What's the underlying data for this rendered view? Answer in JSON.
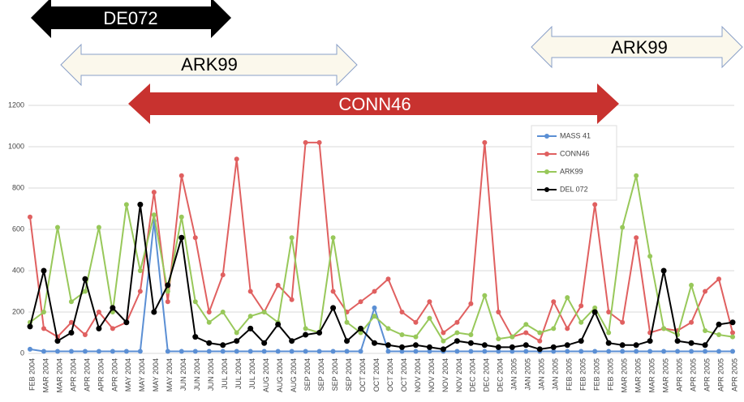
{
  "chart_data": {
    "type": "line",
    "annotations": [
      "DE072",
      "ARK99",
      "ARK99",
      "CONN46"
    ],
    "categories": [
      "FEB 2004",
      "MAR 2004",
      "MAR 2004",
      "APR 2004",
      "APR 2004",
      "APR 2004",
      "APR 2004",
      "MAY 2004",
      "MAY 2004",
      "MAY 2004",
      "MAY 2004",
      "JUN 2004",
      "JUN 2004",
      "JUN 2004",
      "JUL 2004",
      "JUL 2004",
      "JUL 2004",
      "AUG 2004",
      "AUG 2004",
      "AUG 2004",
      "SEP 2004",
      "SEP 2004",
      "SEP 2004",
      "SEP 2004",
      "OCT 2004",
      "OCT 2004",
      "OCT 2004",
      "OCT 2004",
      "NOV 2004",
      "NOV 2004",
      "NOV 2004",
      "NOV 2004",
      "DEC 2004",
      "DEC 2004",
      "DEC 2004",
      "JAN 2005",
      "JAN 2005",
      "JAN 2005",
      "JAN 2005",
      "FEB 2005",
      "FEB 2005",
      "FEB 2005",
      "FEB 2005",
      "MAR 2005",
      "MAR 2005",
      "MAR 2005",
      "MAR 2005",
      "APR 2005",
      "APR 2005",
      "APR 2005",
      "APR 2005",
      "APR 2005"
    ],
    "series": [
      {
        "name": "MASS 41",
        "color": "#5b8fd4",
        "values": [
          20,
          10,
          10,
          10,
          10,
          10,
          10,
          10,
          10,
          640,
          10,
          10,
          10,
          10,
          10,
          10,
          10,
          10,
          10,
          10,
          10,
          10,
          10,
          10,
          10,
          220,
          10,
          10,
          10,
          10,
          10,
          10,
          10,
          10,
          10,
          10,
          10,
          10,
          10,
          10,
          10,
          10,
          10,
          10,
          10,
          10,
          10,
          10,
          10,
          10,
          10,
          10
        ]
      },
      {
        "name": "CONN46",
        "color": "#e06060",
        "values": [
          660,
          120,
          80,
          150,
          90,
          200,
          120,
          150,
          300,
          780,
          250,
          860,
          560,
          200,
          380,
          940,
          300,
          200,
          330,
          260,
          1020,
          1020,
          300,
          200,
          250,
          300,
          360,
          200,
          150,
          250,
          100,
          150,
          240,
          1020,
          200,
          80,
          100,
          60,
          250,
          120,
          230,
          720,
          200,
          150,
          560,
          100,
          120,
          110,
          150,
          300,
          360,
          100
        ]
      },
      {
        "name": "ARK99",
        "color": "#98c85a",
        "values": [
          150,
          200,
          610,
          250,
          300,
          610,
          200,
          720,
          400,
          670,
          300,
          660,
          250,
          150,
          200,
          100,
          180,
          200,
          150,
          560,
          120,
          100,
          560,
          150,
          100,
          180,
          120,
          90,
          80,
          170,
          60,
          100,
          90,
          280,
          70,
          80,
          140,
          100,
          120,
          270,
          150,
          220,
          100,
          610,
          860,
          470,
          120,
          90,
          330,
          110,
          90,
          80
        ]
      },
      {
        "name": "DEL 072",
        "color": "#000000",
        "values": [
          130,
          400,
          60,
          100,
          360,
          120,
          220,
          150,
          720,
          200,
          330,
          560,
          80,
          50,
          40,
          60,
          120,
          50,
          140,
          60,
          90,
          100,
          220,
          60,
          120,
          50,
          40,
          30,
          40,
          30,
          20,
          60,
          50,
          40,
          30,
          30,
          40,
          20,
          30,
          40,
          60,
          200,
          50,
          40,
          40,
          60,
          400,
          60,
          50,
          40,
          140,
          150
        ]
      }
    ],
    "ylim": [
      0,
      1200
    ],
    "yticks": [
      0,
      200,
      400,
      600,
      800,
      1000,
      1200
    ],
    "grid": true
  }
}
